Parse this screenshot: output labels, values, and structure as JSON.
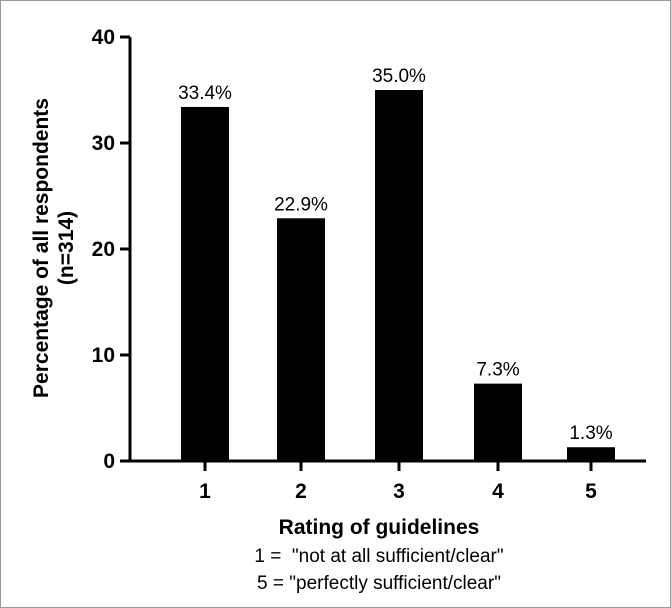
{
  "chart_data": {
    "type": "bar",
    "categories": [
      "1",
      "2",
      "3",
      "4",
      "5"
    ],
    "values": [
      33.4,
      22.9,
      35.0,
      7.3,
      1.3
    ],
    "data_labels": [
      "33.4%",
      "22.9%",
      "35.0%",
      "7.3%",
      "1.3%"
    ],
    "ylim": [
      0,
      40
    ],
    "yticks": [
      "0",
      "10",
      "20",
      "30",
      "40"
    ],
    "ytick_values": [
      0,
      10,
      20,
      30,
      40
    ],
    "ylabel_line1": "Percentage of all respondents",
    "ylabel_line2": "(n=314)",
    "xlabel": "Rating of guidelines",
    "xlabel_note1": "1 =  \"not at all sufficient/clear\"",
    "xlabel_note2": "5 = \"perfectly sufficient/clear\"",
    "bar_color": "#000000",
    "grid": false,
    "legend": "none"
  }
}
